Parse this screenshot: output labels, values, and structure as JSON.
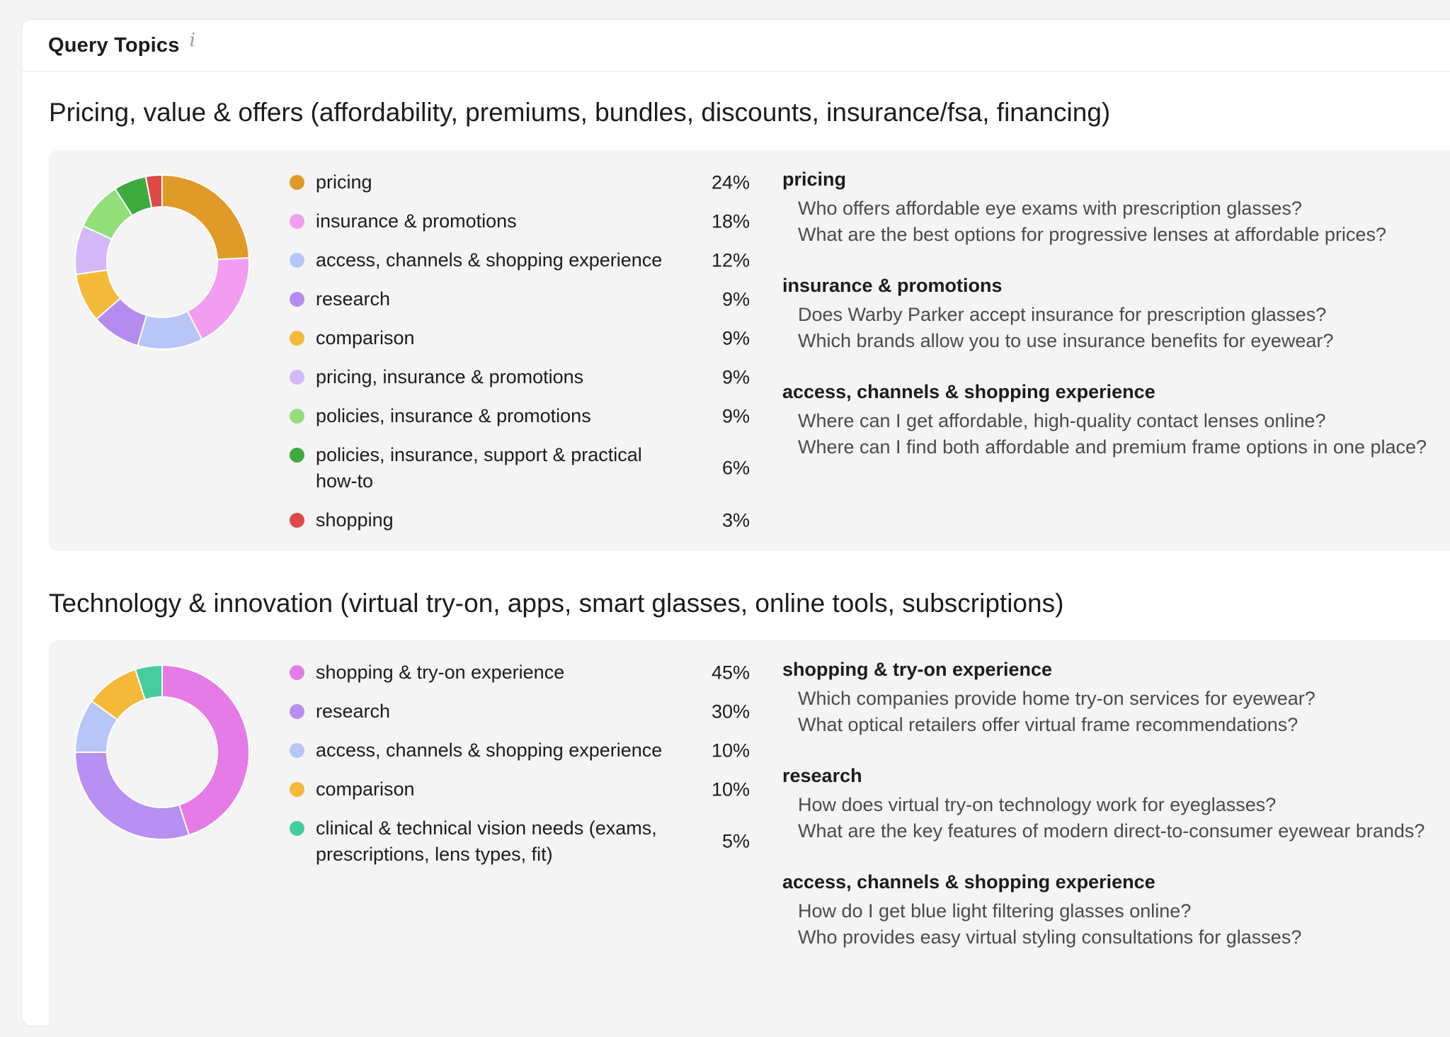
{
  "header": {
    "title": "Query Topics",
    "info_glyph": "i"
  },
  "sections": [
    {
      "title": "Pricing, value & offers (affordability, premiums, bundles, discounts, insurance/fsa, financing)",
      "chart_data": {
        "type": "pie",
        "categories": [
          "pricing",
          "insurance & promotions",
          "access, channels & shopping experience",
          "research",
          "comparison",
          "pricing, insurance & promotions",
          "policies, insurance & promotions",
          "policies, insurance, support & practical how-to",
          "shopping"
        ],
        "values": [
          24,
          18,
          12,
          9,
          9,
          9,
          9,
          6,
          3
        ],
        "colors": [
          "#e09a28",
          "#f29ef0",
          "#b7c6f7",
          "#b48cf0",
          "#f5b93a",
          "#d3b9f8",
          "#92df7a",
          "#3dab3d",
          "#e04848"
        ]
      },
      "legend": [
        {
          "label": "pricing",
          "pct": "24%"
        },
        {
          "label": "insurance & promotions",
          "pct": "18%"
        },
        {
          "label": "access, channels & shopping experience",
          "pct": "12%"
        },
        {
          "label": "research",
          "pct": "9%"
        },
        {
          "label": "comparison",
          "pct": "9%"
        },
        {
          "label": "pricing, insurance & promotions",
          "pct": "9%"
        },
        {
          "label": "policies, insurance & promotions",
          "pct": "9%"
        },
        {
          "label": "policies, insurance, support & practical how-to",
          "pct": "6%"
        },
        {
          "label": "shopping",
          "pct": "3%"
        }
      ],
      "examples": [
        {
          "topic": "pricing",
          "queries": [
            "Who offers affordable eye exams with prescription glasses?",
            "What are the best options for progressive lenses at affordable prices?"
          ]
        },
        {
          "topic": "insurance & promotions",
          "queries": [
            "Does Warby Parker accept insurance for prescription glasses?",
            "Which brands allow you to use insurance benefits for eyewear?"
          ]
        },
        {
          "topic": "access, channels & shopping experience",
          "queries": [
            "Where can I get affordable, high-quality contact lenses online?",
            "Where can I find both affordable and premium frame options in one place?"
          ]
        }
      ]
    },
    {
      "title": "Technology & innovation (virtual try-on, apps, smart glasses, online tools, subscriptions)",
      "chart_data": {
        "type": "pie",
        "categories": [
          "shopping & try-on experience",
          "research",
          "access, channels & shopping experience",
          "comparison",
          "clinical & technical vision needs (exams, prescriptions, lens types, fit)"
        ],
        "values": [
          45,
          30,
          10,
          10,
          5
        ],
        "colors": [
          "#e57be6",
          "#b88ff2",
          "#b7c6f7",
          "#f5b93a",
          "#45cda0"
        ]
      },
      "legend": [
        {
          "label": "shopping & try-on experience",
          "pct": "45%"
        },
        {
          "label": "research",
          "pct": "30%"
        },
        {
          "label": "access, channels & shopping experience",
          "pct": "10%"
        },
        {
          "label": "comparison",
          "pct": "10%"
        },
        {
          "label": "clinical & technical vision needs (exams, prescriptions, lens types, fit)",
          "pct": "5%"
        }
      ],
      "examples": [
        {
          "topic": "shopping & try-on experience",
          "queries": [
            "Which companies provide home try-on services for eyewear?",
            "What optical retailers offer virtual frame recommendations?"
          ]
        },
        {
          "topic": "research",
          "queries": [
            "How does virtual try-on technology work for eyeglasses?",
            "What are the key features of modern direct-to-consumer eyewear brands?"
          ]
        },
        {
          "topic": "access, channels & shopping experience",
          "queries": [
            "How do I get blue light filtering glasses online?",
            "Who provides easy virtual styling consultations for glasses?"
          ]
        }
      ]
    }
  ]
}
